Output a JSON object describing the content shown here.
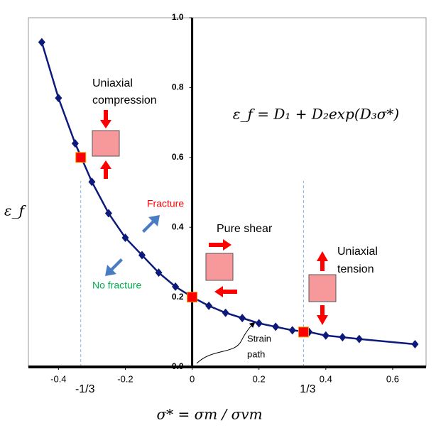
{
  "chart_data": {
    "type": "line",
    "x_label": "σ* = σm / σvm",
    "y_label": "ε_f",
    "formula": "ε_f = D₁ + D₂exp(D₃σ*)",
    "xlim": [
      -0.49,
      0.7
    ],
    "ylim": [
      0,
      1
    ],
    "xticks": [
      -0.4,
      -0.2,
      0,
      0.2,
      0.4,
      0.6
    ],
    "yticks": [
      {
        "value": 0,
        "label": "0.0"
      },
      0.2,
      0.4,
      0.6,
      0.8,
      {
        "value": 1,
        "label": "1.0"
      }
    ],
    "marked_x": [
      {
        "value": -0.3333,
        "label": "-1/3"
      },
      {
        "value": 0.3333,
        "label": "1/3"
      }
    ],
    "series": [
      {
        "color": "#0d1a7a",
        "x": [
          -0.45,
          -0.4,
          -0.35,
          -0.3,
          -0.25,
          -0.2,
          -0.15,
          -0.1,
          -0.05,
          0,
          0.05,
          0.1,
          0.15,
          0.2,
          0.25,
          0.3,
          0.35,
          0.4,
          0.45,
          0.5,
          0.667
        ],
        "values": [
          0.93,
          0.77,
          0.64,
          0.53,
          0.44,
          0.37,
          0.32,
          0.27,
          0.23,
          0.2,
          0.175,
          0.155,
          0.14,
          0.125,
          0.115,
          0.105,
          0.1,
          0.09,
          0.085,
          0.08,
          0.065
        ]
      },
      {
        "color": "#ff0000",
        "x": [
          -0.3333,
          0,
          0.3333
        ],
        "values": [
          0.6,
          0.2,
          0.1
        ]
      }
    ],
    "annotations": {
      "compression": [
        "Uniaxial",
        "compression"
      ],
      "shear": "Pure shear",
      "tension": [
        "Uniaxial",
        "tension"
      ],
      "fracture": "Fracture",
      "no_fracture": "No fracture",
      "strain_path": [
        "Strain",
        "path"
      ]
    }
  }
}
